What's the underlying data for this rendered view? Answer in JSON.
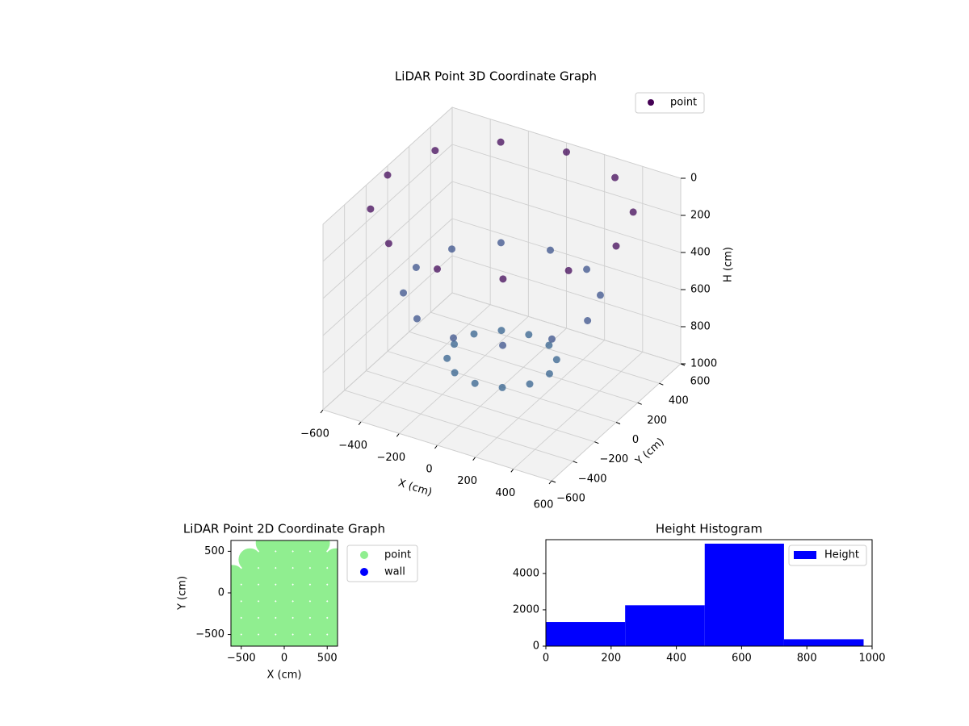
{
  "chart_data": [
    {
      "type": "scatter3d",
      "title": "LiDAR Point 3D Coordinate Graph",
      "xlabel": "X (cm)",
      "ylabel": "Y (cm)",
      "zlabel": "H (cm)",
      "xlim": [
        -600,
        600
      ],
      "ylim": [
        -600,
        600
      ],
      "zlim": [
        1000,
        0
      ],
      "xticks": [
        {
          "value": -600,
          "label": "−600"
        },
        {
          "value": -400,
          "label": "−400"
        },
        {
          "value": -200,
          "label": "−200"
        },
        0,
        200,
        400,
        600
      ],
      "yticks": [
        {
          "value": -600,
          "label": "−600"
        },
        {
          "value": -400,
          "label": "−400"
        },
        {
          "value": -200,
          "label": "−200"
        },
        0,
        200,
        400,
        600
      ],
      "zticks": [
        0,
        200,
        400,
        600,
        800,
        1000
      ],
      "grid": true,
      "legend": "upper right",
      "series": [
        {
          "name": "point",
          "color": "#440154",
          "colormap": [
            "#440154",
            "#3b528b",
            "#31688e"
          ],
          "x": [
            600,
            520,
            300,
            0,
            -300,
            -520,
            -600,
            -520,
            -300,
            0,
            300,
            520,
            450,
            390,
            225,
            0,
            -225,
            -390,
            -450,
            -390,
            -225,
            0,
            225,
            390,
            250,
            217,
            125,
            0,
            -125,
            -217,
            -250,
            -217,
            -125,
            0,
            125,
            217
          ],
          "y": [
            0,
            300,
            520,
            600,
            520,
            300,
            0,
            -300,
            -520,
            -600,
            -520,
            -300,
            0,
            225,
            390,
            450,
            390,
            225,
            0,
            -225,
            -390,
            -450,
            -390,
            -225,
            0,
            125,
            217,
            250,
            217,
            125,
            0,
            -125,
            -217,
            -250,
            -217,
            -125
          ],
          "z": [
            50,
            50,
            50,
            50,
            50,
            50,
            50,
            50,
            50,
            50,
            50,
            50,
            500,
            500,
            500,
            500,
            500,
            500,
            500,
            500,
            500,
            500,
            500,
            500,
            850,
            850,
            850,
            850,
            850,
            850,
            850,
            850,
            850,
            850,
            850,
            850
          ]
        }
      ]
    },
    {
      "type": "scatter",
      "title": "LiDAR Point 2D Coordinate Graph",
      "xlabel": "X (cm)",
      "ylabel": "Y (cm)",
      "xlim": [
        -620,
        620
      ],
      "ylim": [
        -640,
        630
      ],
      "xticks": [
        {
          "value": -500,
          "label": "−500"
        },
        0,
        500
      ],
      "yticks": [
        {
          "value": -500,
          "label": "−500"
        },
        0,
        500
      ],
      "legend": "outside right",
      "series": [
        {
          "name": "point",
          "color": "#90ee90",
          "x": [
            -200,
            0,
            200,
            400,
            -400,
            -200,
            0,
            200,
            400,
            600,
            -600,
            -400,
            -200,
            0,
            200,
            400,
            600,
            -600,
            -400,
            -200,
            0,
            200,
            400,
            600,
            -600,
            -400,
            -200,
            0,
            200,
            400,
            600,
            -600,
            -400,
            -200,
            0,
            200,
            400,
            600,
            -600,
            -400,
            -200,
            0,
            200,
            400,
            600
          ],
          "y": [
            600,
            600,
            600,
            600,
            400,
            400,
            400,
            400,
            400,
            400,
            200,
            200,
            200,
            200,
            200,
            200,
            200,
            0,
            0,
            0,
            0,
            0,
            0,
            0,
            -200,
            -200,
            -200,
            -200,
            -200,
            -200,
            -200,
            -400,
            -400,
            -400,
            -400,
            -400,
            -400,
            -400,
            -600,
            -600,
            -600,
            -600,
            -600,
            -600,
            -600
          ]
        },
        {
          "name": "wall",
          "color": "#0000ff",
          "x": [],
          "y": []
        }
      ]
    },
    {
      "type": "histogram",
      "title": "Height Histogram",
      "label": "Height",
      "color": "#0000ff",
      "bins": [
        0,
        243,
        487,
        730,
        974
      ],
      "values": [
        1330,
        2250,
        5640,
        380
      ],
      "xlim": [
        0,
        1000
      ],
      "ylim": [
        0,
        5860
      ],
      "xticks": [
        0,
        200,
        400,
        600,
        800,
        1000
      ],
      "yticks": [
        0,
        2000,
        4000
      ],
      "legend": "upper right"
    }
  ]
}
